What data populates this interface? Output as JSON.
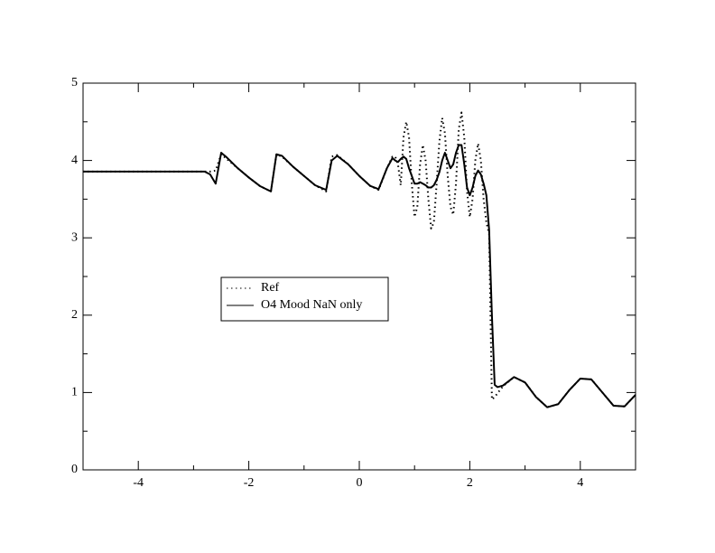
{
  "chart_data": {
    "type": "line",
    "x": [
      -5,
      -4.5,
      -4,
      -3.5,
      -3,
      -2.8,
      -2.7,
      -2.6,
      -2.5,
      -2.4,
      -2.2,
      -2,
      -1.8,
      -1.6,
      -1.5,
      -1.4,
      -1.2,
      -1,
      -0.8,
      -0.6,
      -0.5,
      -0.4,
      -0.2,
      0,
      0.2,
      0.35,
      0.5,
      0.6,
      0.65,
      0.7,
      0.75,
      0.8,
      0.85,
      0.9,
      0.95,
      1.0,
      1.05,
      1.1,
      1.15,
      1.2,
      1.25,
      1.3,
      1.35,
      1.4,
      1.45,
      1.5,
      1.55,
      1.6,
      1.65,
      1.7,
      1.75,
      1.8,
      1.85,
      1.9,
      1.95,
      2.0,
      2.05,
      2.1,
      2.15,
      2.2,
      2.25,
      2.3,
      2.35,
      2.4,
      2.45,
      2.5,
      2.6,
      2.8,
      3,
      3.2,
      3.4,
      3.6,
      3.8,
      4,
      4.2,
      4.4,
      4.6,
      4.8,
      5
    ],
    "series": [
      {
        "name": "Ref",
        "color": "#000000",
        "style": "dotted",
        "values": [
          3.857,
          3.857,
          3.857,
          3.857,
          3.857,
          3.857,
          3.857,
          3.87,
          4.08,
          4.02,
          3.9,
          3.78,
          3.67,
          3.6,
          4.08,
          4.05,
          3.92,
          3.8,
          3.68,
          3.6,
          4.05,
          4.07,
          3.95,
          3.8,
          3.67,
          3.62,
          3.9,
          4.05,
          4.05,
          3.95,
          3.68,
          4.3,
          4.5,
          4.3,
          3.7,
          3.27,
          3.4,
          3.95,
          4.2,
          4.0,
          3.5,
          3.12,
          3.2,
          3.7,
          4.25,
          4.55,
          4.35,
          3.8,
          3.4,
          3.3,
          3.7,
          4.4,
          4.62,
          4.3,
          3.6,
          3.27,
          3.5,
          4.0,
          4.22,
          4.0,
          3.5,
          3.2,
          3.05,
          0.91,
          0.94,
          0.99,
          1.08,
          1.2,
          1.13,
          0.94,
          0.81,
          0.85,
          1.03,
          1.18,
          1.17,
          1.0,
          0.83,
          0.82,
          0.97
        ]
      },
      {
        "name": "O4 Mood NaN only",
        "color": "#000000",
        "style": "solid",
        "values": [
          3.857,
          3.857,
          3.857,
          3.857,
          3.857,
          3.857,
          3.82,
          3.7,
          4.1,
          4.04,
          3.9,
          3.78,
          3.67,
          3.6,
          4.08,
          4.06,
          3.92,
          3.8,
          3.68,
          3.62,
          4.0,
          4.06,
          3.95,
          3.8,
          3.67,
          3.63,
          3.9,
          4.03,
          4.0,
          3.98,
          4.02,
          4.05,
          4.02,
          3.9,
          3.8,
          3.7,
          3.7,
          3.72,
          3.7,
          3.68,
          3.65,
          3.65,
          3.68,
          3.75,
          3.85,
          4.0,
          4.1,
          4.0,
          3.9,
          3.95,
          4.1,
          4.2,
          4.2,
          3.95,
          3.65,
          3.55,
          3.65,
          3.8,
          3.87,
          3.82,
          3.7,
          3.55,
          3.1,
          2.0,
          1.1,
          1.07,
          1.09,
          1.2,
          1.13,
          0.94,
          0.81,
          0.85,
          1.03,
          1.18,
          1.17,
          1.0,
          0.83,
          0.82,
          0.97
        ]
      }
    ],
    "xlim": [
      -5,
      5
    ],
    "ylim": [
      0,
      5
    ],
    "xticks": [
      -4,
      -2,
      0,
      2,
      4
    ],
    "yticks": [
      0,
      1,
      2,
      3,
      4,
      5
    ],
    "xminorticks": [
      -3,
      -1,
      1,
      3
    ],
    "yminorticks": [
      0.5,
      1.5,
      2.5,
      3.5,
      4.5
    ],
    "legend": "center-left"
  }
}
